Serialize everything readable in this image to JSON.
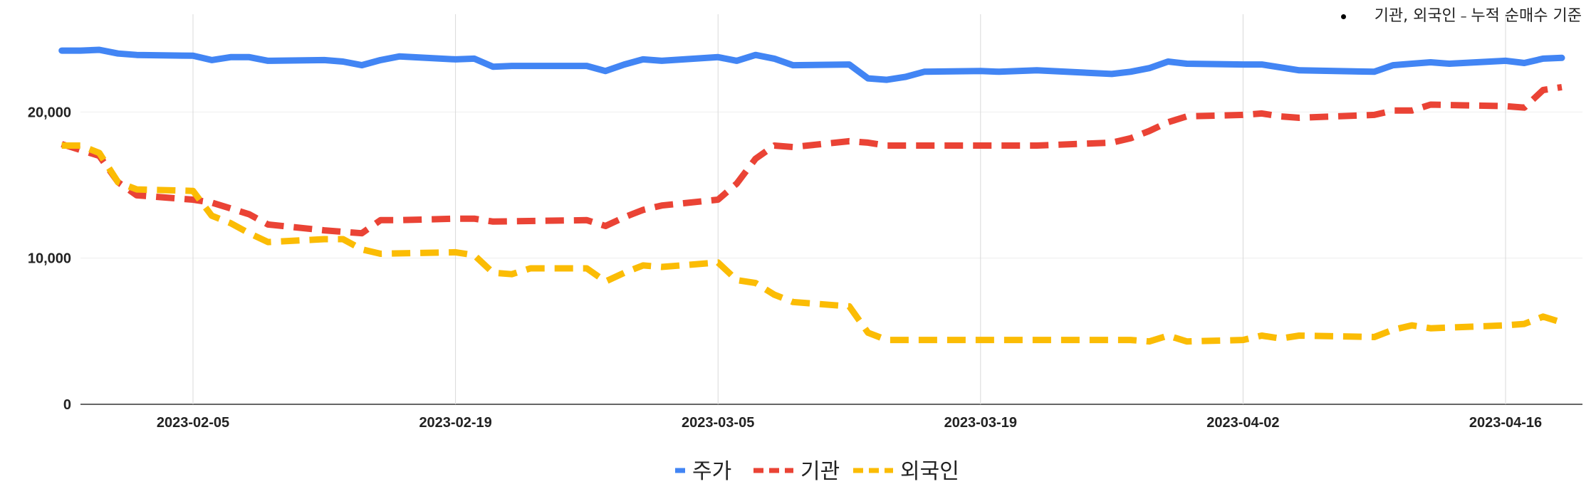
{
  "note": {
    "main": "기관, 외국인",
    "dash": " – ",
    "rest": "누적 순매수 기준"
  },
  "chart_data": {
    "type": "line",
    "x_ticks": [
      "2023-02-05",
      "2023-02-19",
      "2023-03-05",
      "2023-03-19",
      "2023-04-02",
      "2023-04-16"
    ],
    "y_ticks": [
      "0",
      "10,000",
      "20,000"
    ],
    "ylim": [
      0,
      26200
    ],
    "xlim": [
      "2023-01-29",
      "2023-04-21"
    ],
    "grid": true,
    "legend_position": "bottom",
    "series": [
      {
        "name": "주가",
        "color": "#4285f4",
        "dash": "solid",
        "points": [
          [
            "2023-01-29",
            24200
          ],
          [
            "2023-01-30",
            24200
          ],
          [
            "2023-01-31",
            24250
          ],
          [
            "2023-02-01",
            24000
          ],
          [
            "2023-02-02",
            23900
          ],
          [
            "2023-02-05",
            23850
          ],
          [
            "2023-02-06",
            23550
          ],
          [
            "2023-02-07",
            23750
          ],
          [
            "2023-02-08",
            23750
          ],
          [
            "2023-02-09",
            23500
          ],
          [
            "2023-02-12",
            23550
          ],
          [
            "2023-02-13",
            23450
          ],
          [
            "2023-02-14",
            23200
          ],
          [
            "2023-02-15",
            23550
          ],
          [
            "2023-02-16",
            23800
          ],
          [
            "2023-02-19",
            23600
          ],
          [
            "2023-02-20",
            23650
          ],
          [
            "2023-02-21",
            23100
          ],
          [
            "2023-02-22",
            23150
          ],
          [
            "2023-02-26",
            23150
          ],
          [
            "2023-02-27",
            22800
          ],
          [
            "2023-02-28",
            23250
          ],
          [
            "2023-03-01",
            23600
          ],
          [
            "2023-03-02",
            23500
          ],
          [
            "2023-03-05",
            23750
          ],
          [
            "2023-03-06",
            23500
          ],
          [
            "2023-03-07",
            23900
          ],
          [
            "2023-03-08",
            23650
          ],
          [
            "2023-03-09",
            23200
          ],
          [
            "2023-03-12",
            23250
          ],
          [
            "2023-03-13",
            22300
          ],
          [
            "2023-03-14",
            22200
          ],
          [
            "2023-03-15",
            22400
          ],
          [
            "2023-03-16",
            22750
          ],
          [
            "2023-03-19",
            22800
          ],
          [
            "2023-03-20",
            22750
          ],
          [
            "2023-03-22",
            22850
          ],
          [
            "2023-03-26",
            22600
          ],
          [
            "2023-03-27",
            22750
          ],
          [
            "2023-03-28",
            23000
          ],
          [
            "2023-03-29",
            23450
          ],
          [
            "2023-03-30",
            23300
          ],
          [
            "2023-04-02",
            23250
          ],
          [
            "2023-04-03",
            23250
          ],
          [
            "2023-04-04",
            23050
          ],
          [
            "2023-04-05",
            22850
          ],
          [
            "2023-04-09",
            22750
          ],
          [
            "2023-04-10",
            23200
          ],
          [
            "2023-04-11",
            23300
          ],
          [
            "2023-04-12",
            23400
          ],
          [
            "2023-04-13",
            23300
          ],
          [
            "2023-04-16",
            23500
          ],
          [
            "2023-04-17",
            23350
          ],
          [
            "2023-04-18",
            23650
          ],
          [
            "2023-04-19",
            23700
          ]
        ]
      },
      {
        "name": "기관",
        "color": "#ea4335",
        "dash": "dashed",
        "points": [
          [
            "2023-01-29",
            17800
          ],
          [
            "2023-01-30",
            17400
          ],
          [
            "2023-01-31",
            17000
          ],
          [
            "2023-02-01",
            15200
          ],
          [
            "2023-02-02",
            14300
          ],
          [
            "2023-02-05",
            14000
          ],
          [
            "2023-02-06",
            13800
          ],
          [
            "2023-02-07",
            13400
          ],
          [
            "2023-02-08",
            13000
          ],
          [
            "2023-02-09",
            12300
          ],
          [
            "2023-02-12",
            11900
          ],
          [
            "2023-02-13",
            11800
          ],
          [
            "2023-02-14",
            11700
          ],
          [
            "2023-02-15",
            12600
          ],
          [
            "2023-02-16",
            12600
          ],
          [
            "2023-02-19",
            12700
          ],
          [
            "2023-02-20",
            12700
          ],
          [
            "2023-02-21",
            12500
          ],
          [
            "2023-02-26",
            12600
          ],
          [
            "2023-02-27",
            12200
          ],
          [
            "2023-02-28",
            12800
          ],
          [
            "2023-03-01",
            13300
          ],
          [
            "2023-03-02",
            13600
          ],
          [
            "2023-03-05",
            14000
          ],
          [
            "2023-03-06",
            15100
          ],
          [
            "2023-03-07",
            16800
          ],
          [
            "2023-03-08",
            17700
          ],
          [
            "2023-03-09",
            17600
          ],
          [
            "2023-03-12",
            18000
          ],
          [
            "2023-03-13",
            17900
          ],
          [
            "2023-03-14",
            17700
          ],
          [
            "2023-03-19",
            17700
          ],
          [
            "2023-03-22",
            17700
          ],
          [
            "2023-03-26",
            17900
          ],
          [
            "2023-03-27",
            18200
          ],
          [
            "2023-03-28",
            18700
          ],
          [
            "2023-03-29",
            19300
          ],
          [
            "2023-03-30",
            19700
          ],
          [
            "2023-04-02",
            19800
          ],
          [
            "2023-04-03",
            19900
          ],
          [
            "2023-04-04",
            19700
          ],
          [
            "2023-04-05",
            19600
          ],
          [
            "2023-04-09",
            19800
          ],
          [
            "2023-04-10",
            20100
          ],
          [
            "2023-04-11",
            20100
          ],
          [
            "2023-04-12",
            20500
          ],
          [
            "2023-04-16",
            20400
          ],
          [
            "2023-04-17",
            20300
          ],
          [
            "2023-04-18",
            21500
          ],
          [
            "2023-04-19",
            21700
          ]
        ]
      },
      {
        "name": "외국인",
        "color": "#fbbc04",
        "dash": "dashed",
        "points": [
          [
            "2023-01-29",
            17700
          ],
          [
            "2023-01-30",
            17700
          ],
          [
            "2023-01-31",
            17200
          ],
          [
            "2023-02-01",
            15200
          ],
          [
            "2023-02-02",
            14700
          ],
          [
            "2023-02-05",
            14600
          ],
          [
            "2023-02-06",
            12900
          ],
          [
            "2023-02-07",
            12400
          ],
          [
            "2023-02-08",
            11700
          ],
          [
            "2023-02-09",
            11100
          ],
          [
            "2023-02-12",
            11300
          ],
          [
            "2023-02-13",
            11300
          ],
          [
            "2023-02-14",
            10600
          ],
          [
            "2023-02-15",
            10300
          ],
          [
            "2023-02-19",
            10400
          ],
          [
            "2023-02-20",
            10200
          ],
          [
            "2023-02-21",
            9000
          ],
          [
            "2023-02-22",
            8900
          ],
          [
            "2023-02-23",
            9300
          ],
          [
            "2023-02-26",
            9300
          ],
          [
            "2023-02-27",
            8400
          ],
          [
            "2023-02-28",
            9000
          ],
          [
            "2023-03-01",
            9500
          ],
          [
            "2023-03-02",
            9400
          ],
          [
            "2023-03-05",
            9700
          ],
          [
            "2023-03-06",
            8500
          ],
          [
            "2023-03-07",
            8300
          ],
          [
            "2023-03-08",
            7500
          ],
          [
            "2023-03-09",
            7000
          ],
          [
            "2023-03-12",
            6700
          ],
          [
            "2023-03-13",
            4900
          ],
          [
            "2023-03-14",
            4400
          ],
          [
            "2023-03-19",
            4400
          ],
          [
            "2023-03-27",
            4400
          ],
          [
            "2023-03-28",
            4300
          ],
          [
            "2023-03-29",
            4700
          ],
          [
            "2023-03-30",
            4300
          ],
          [
            "2023-04-02",
            4400
          ],
          [
            "2023-04-03",
            4700
          ],
          [
            "2023-04-04",
            4500
          ],
          [
            "2023-04-05",
            4700
          ],
          [
            "2023-04-09",
            4600
          ],
          [
            "2023-04-10",
            5100
          ],
          [
            "2023-04-11",
            5400
          ],
          [
            "2023-04-12",
            5200
          ],
          [
            "2023-04-16",
            5400
          ],
          [
            "2023-04-17",
            5500
          ],
          [
            "2023-04-18",
            6000
          ],
          [
            "2023-04-19",
            5600
          ]
        ]
      }
    ]
  }
}
